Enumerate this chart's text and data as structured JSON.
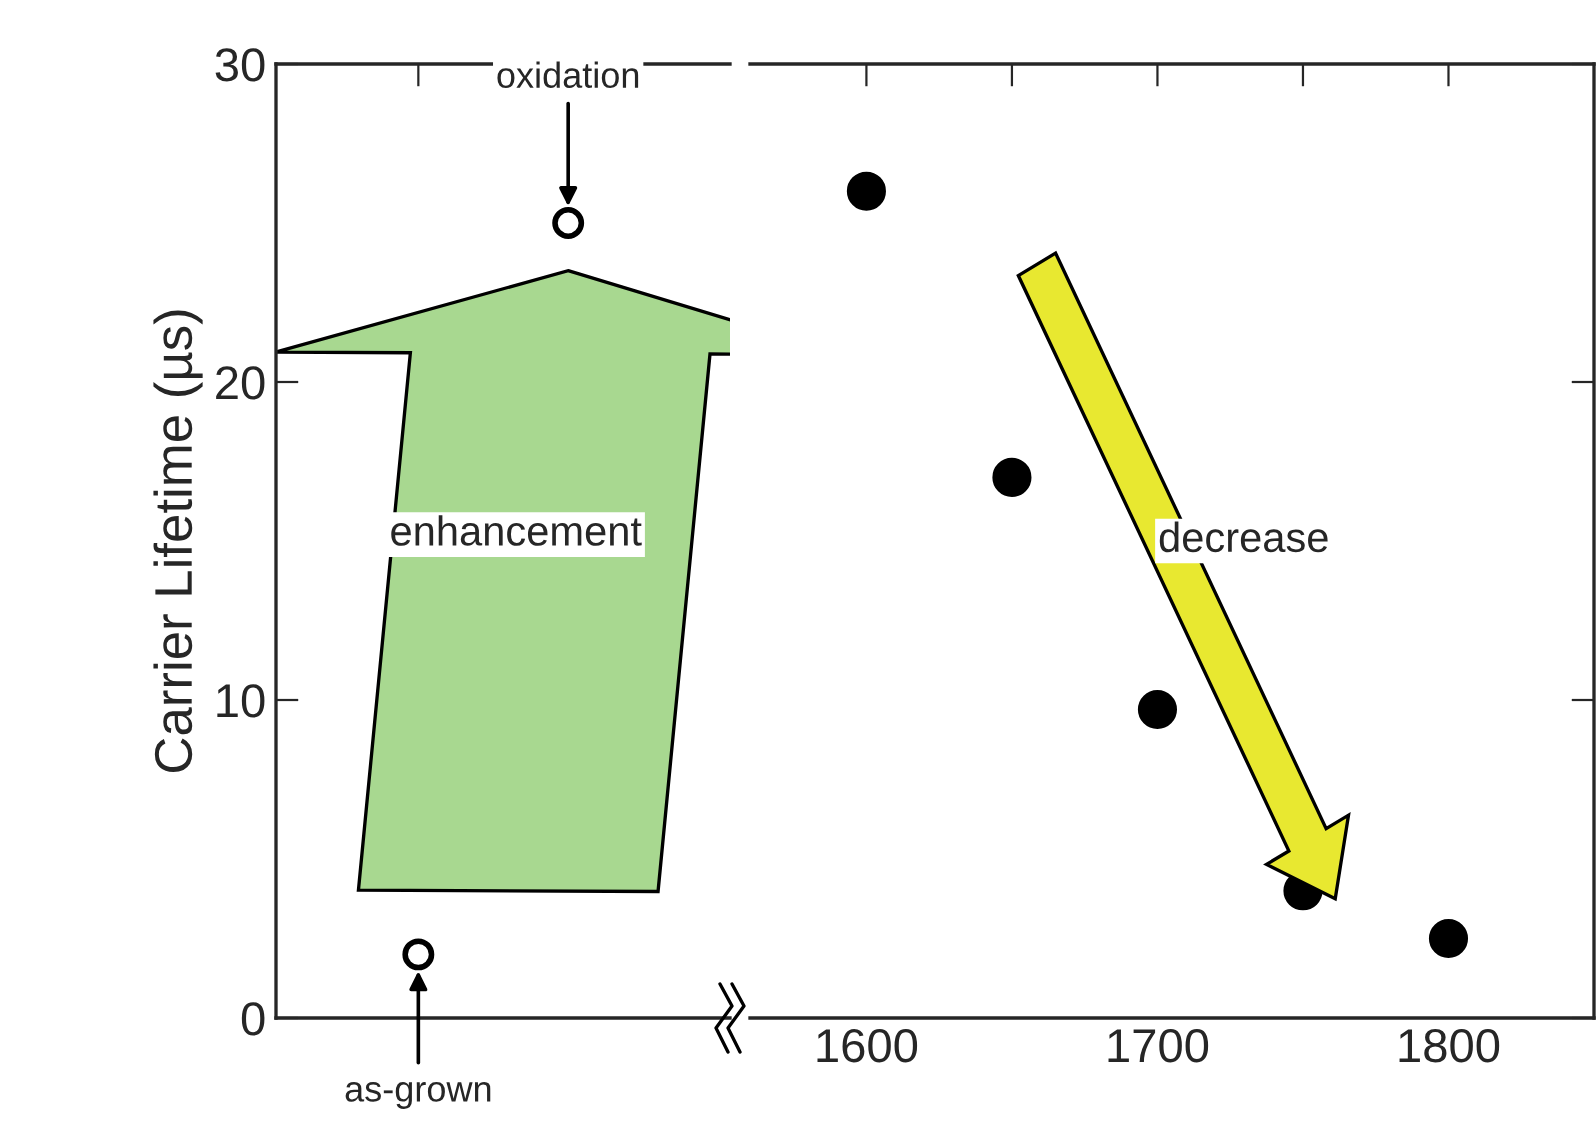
{
  "chart_data": [
    {
      "type": "scatter",
      "ylabel": "Carrier Lifetime (µs)",
      "categories": [
        null,
        null
      ],
      "ylim": [
        0,
        30
      ],
      "yticks": [
        0,
        10,
        20,
        30
      ],
      "tick_labels": "y",
      "marker": "circle",
      "series": [
        {
          "color": "#000000",
          "values": [
            2,
            25
          ]
        }
      ],
      "annotations": [
        "as-grown",
        "oxidation",
        "enhancement"
      ]
    },
    {
      "type": "scatter",
      "x": [
        1600,
        1650,
        1700,
        1750,
        1800
      ],
      "xlim": [
        1560,
        1850
      ],
      "xticks": [
        1600,
        {
          "value": 1650,
          "label": null
        },
        1700,
        {
          "value": 1750,
          "label": null
        },
        1800
      ],
      "ylim": [
        0,
        30
      ],
      "yticks": [
        0,
        10,
        20,
        30
      ],
      "tick_labels": "x",
      "marker": "circle",
      "series": [
        {
          "color": "#000000",
          "values": [
            26,
            17,
            9.7,
            4.0,
            2.5
          ]
        }
      ],
      "annotations": [
        "decrease"
      ]
    }
  ]
}
